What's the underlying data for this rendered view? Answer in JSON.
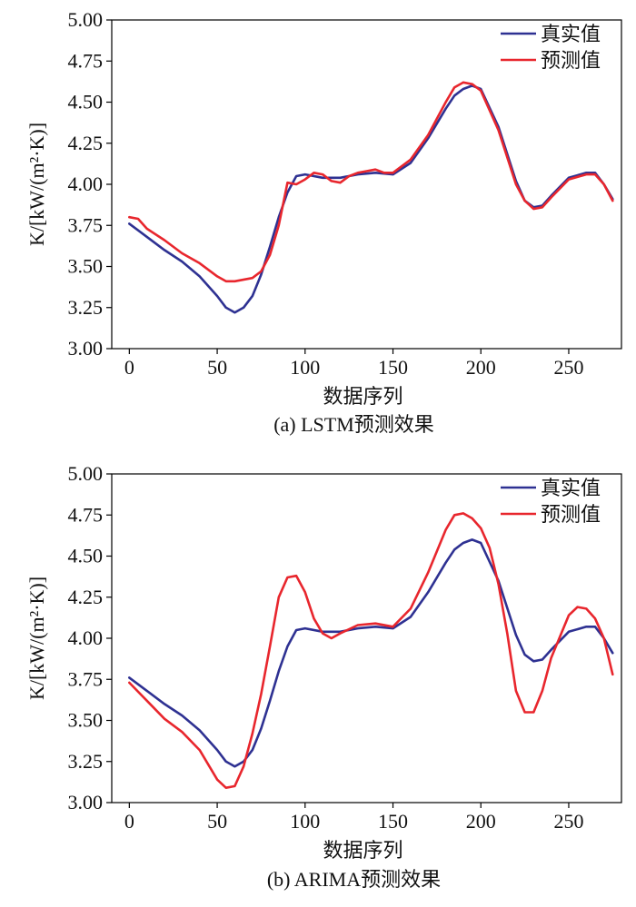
{
  "chart_data": [
    {
      "type": "line",
      "caption": "(a) LSTM预测效果",
      "xlabel": "数据序列",
      "ylabel": "K/[kW/(m²·K)]",
      "xlim": [
        -10,
        280
      ],
      "ylim": [
        3.0,
        5.0
      ],
      "xticks": [
        "0",
        "50",
        "100",
        "150",
        "200",
        "250"
      ],
      "yticks": [
        "3.00",
        "3.25",
        "3.50",
        "3.75",
        "4.00",
        "4.25",
        "4.50",
        "4.75",
        "5.00"
      ],
      "legend_position": "top-right",
      "series": [
        {
          "name": "真实值",
          "color": "#2e3192",
          "x": [
            0,
            10,
            20,
            30,
            40,
            50,
            55,
            60,
            65,
            70,
            75,
            80,
            85,
            90,
            95,
            100,
            110,
            120,
            130,
            140,
            150,
            160,
            170,
            180,
            185,
            190,
            195,
            200,
            210,
            220,
            225,
            230,
            235,
            240,
            250,
            260,
            265,
            270,
            275
          ],
          "y": [
            3.76,
            3.68,
            3.6,
            3.53,
            3.44,
            3.32,
            3.25,
            3.22,
            3.25,
            3.32,
            3.45,
            3.62,
            3.8,
            3.95,
            4.05,
            4.06,
            4.04,
            4.04,
            4.06,
            4.07,
            4.06,
            4.13,
            4.28,
            4.46,
            4.54,
            4.58,
            4.6,
            4.58,
            4.35,
            4.02,
            3.9,
            3.86,
            3.87,
            3.93,
            4.04,
            4.07,
            4.07,
            4.0,
            3.91
          ]
        },
        {
          "name": "预测值",
          "color": "#e8262d",
          "x": [
            0,
            5,
            10,
            20,
            30,
            40,
            50,
            55,
            60,
            70,
            75,
            80,
            85,
            90,
            95,
            100,
            105,
            110,
            115,
            120,
            125,
            130,
            135,
            140,
            145,
            150,
            160,
            170,
            180,
            185,
            190,
            195,
            200,
            210,
            220,
            225,
            230,
            235,
            240,
            250,
            260,
            265,
            270,
            275
          ],
          "y": [
            3.8,
            3.79,
            3.73,
            3.66,
            3.58,
            3.52,
            3.44,
            3.41,
            3.41,
            3.43,
            3.47,
            3.57,
            3.75,
            4.01,
            4.0,
            4.03,
            4.07,
            4.06,
            4.02,
            4.01,
            4.05,
            4.07,
            4.08,
            4.09,
            4.07,
            4.07,
            4.15,
            4.3,
            4.5,
            4.59,
            4.62,
            4.61,
            4.57,
            4.33,
            4.0,
            3.9,
            3.85,
            3.86,
            3.92,
            4.03,
            4.06,
            4.06,
            4.0,
            3.9
          ]
        }
      ]
    },
    {
      "type": "line",
      "caption": "(b) ARIMA预测效果",
      "xlabel": "数据序列",
      "ylabel": "K/[kW/(m²·K)]",
      "xlim": [
        -10,
        280
      ],
      "ylim": [
        3.0,
        5.0
      ],
      "xticks": [
        "0",
        "50",
        "100",
        "150",
        "200",
        "250"
      ],
      "yticks": [
        "3.00",
        "3.25",
        "3.50",
        "3.75",
        "4.00",
        "4.25",
        "4.50",
        "4.75",
        "5.00"
      ],
      "legend_position": "top-right",
      "series": [
        {
          "name": "真实值",
          "color": "#2e3192",
          "x": [
            0,
            10,
            20,
            30,
            40,
            50,
            55,
            60,
            65,
            70,
            75,
            80,
            85,
            90,
            95,
            100,
            110,
            120,
            130,
            140,
            150,
            160,
            170,
            180,
            185,
            190,
            195,
            200,
            210,
            220,
            225,
            230,
            235,
            240,
            250,
            260,
            265,
            270,
            275
          ],
          "y": [
            3.76,
            3.68,
            3.6,
            3.53,
            3.44,
            3.32,
            3.25,
            3.22,
            3.25,
            3.32,
            3.45,
            3.62,
            3.8,
            3.95,
            4.05,
            4.06,
            4.04,
            4.04,
            4.06,
            4.07,
            4.06,
            4.13,
            4.28,
            4.46,
            4.54,
            4.58,
            4.6,
            4.58,
            4.35,
            4.02,
            3.9,
            3.86,
            3.87,
            3.93,
            4.04,
            4.07,
            4.07,
            4.0,
            3.91
          ]
        },
        {
          "name": "预测值",
          "color": "#e8262d",
          "x": [
            0,
            10,
            20,
            30,
            40,
            50,
            55,
            60,
            65,
            70,
            75,
            80,
            85,
            90,
            95,
            100,
            105,
            110,
            115,
            120,
            130,
            140,
            150,
            160,
            170,
            180,
            185,
            190,
            195,
            200,
            205,
            210,
            215,
            220,
            225,
            230,
            235,
            240,
            250,
            255,
            260,
            265,
            270,
            275
          ],
          "y": [
            3.73,
            3.62,
            3.51,
            3.43,
            3.32,
            3.14,
            3.09,
            3.1,
            3.22,
            3.42,
            3.66,
            3.95,
            4.25,
            4.37,
            4.38,
            4.28,
            4.12,
            4.03,
            4.0,
            4.03,
            4.08,
            4.09,
            4.07,
            4.18,
            4.4,
            4.66,
            4.75,
            4.76,
            4.73,
            4.67,
            4.55,
            4.33,
            4.03,
            3.68,
            3.55,
            3.55,
            3.68,
            3.88,
            4.14,
            4.19,
            4.18,
            4.12,
            4.0,
            3.78
          ]
        }
      ]
    }
  ]
}
